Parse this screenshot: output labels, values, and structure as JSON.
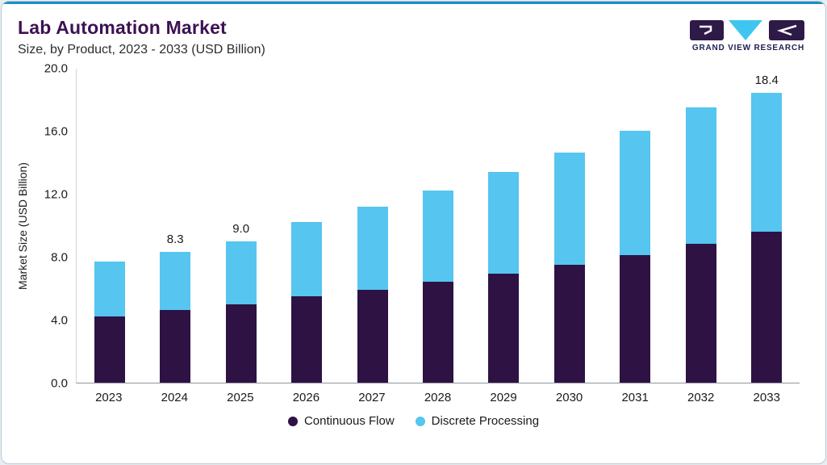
{
  "header": {
    "title": "Lab Automation Market",
    "subtitle": "Size, by Product, 2023 - 2033 (USD Billion)"
  },
  "logo": {
    "text": "GRAND VIEW RESEARCH"
  },
  "colors": {
    "accent_line": "#1b8fc9",
    "title": "#3d1152",
    "continuous_flow": "#2d1243",
    "discrete_processing": "#56c5f0",
    "logo_navy": "#2e1a47",
    "logo_cyan": "#3fc6f0"
  },
  "chart_data": {
    "type": "bar",
    "stacked": true,
    "title": "Lab Automation Market Size, by Product, 2023 - 2033 (USD Billion)",
    "categories": [
      "2023",
      "2024",
      "2025",
      "2026",
      "2027",
      "2028",
      "2029",
      "2030",
      "2031",
      "2032",
      "2033"
    ],
    "series": [
      {
        "name": "Continuous Flow",
        "color": "#2d1243",
        "values": [
          4.2,
          4.6,
          5.0,
          5.5,
          5.9,
          6.4,
          6.9,
          7.5,
          8.1,
          8.8,
          9.6
        ]
      },
      {
        "name": "Discrete Processing",
        "color": "#56c5f0",
        "values": [
          3.5,
          3.7,
          4.0,
          4.7,
          5.3,
          5.8,
          6.5,
          7.1,
          7.9,
          8.7,
          8.8
        ]
      }
    ],
    "totals": [
      7.7,
      8.3,
      9.0,
      10.2,
      11.2,
      12.2,
      13.4,
      14.6,
      16.0,
      17.5,
      18.4
    ],
    "bar_labels": [
      "",
      "8.3",
      "9.0",
      "",
      "",
      "",
      "",
      "",
      "",
      "",
      "18.4"
    ],
    "xlabel": "",
    "ylabel": "Market Size (USD Billion)",
    "ylim": [
      0,
      20
    ],
    "yticks": [
      0.0,
      4.0,
      8.0,
      12.0,
      16.0,
      20.0
    ],
    "grid": false,
    "legend_position": "bottom"
  }
}
